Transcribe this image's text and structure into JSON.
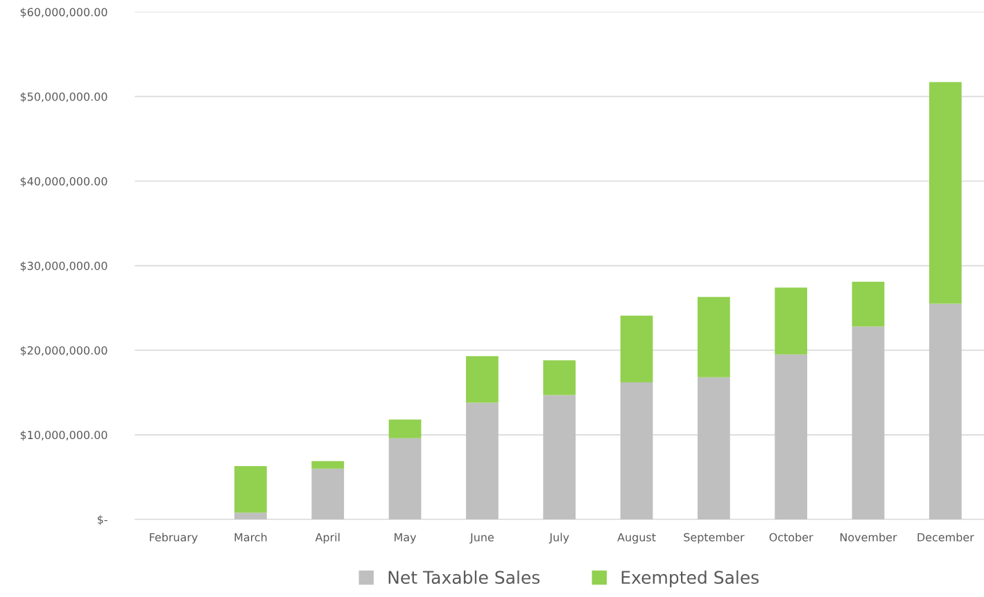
{
  "chart_data": {
    "type": "bar",
    "stacked": true,
    "categories": [
      "February",
      "March",
      "April",
      "May",
      "June",
      "July",
      "August",
      "September",
      "October",
      "November",
      "December"
    ],
    "series": [
      {
        "name": "Net Taxable Sales",
        "color": "#bfbfbf",
        "values": [
          null,
          800000,
          6000000,
          9600000,
          13800000,
          14700000,
          16200000,
          16800000,
          19500000,
          22800000,
          25500000
        ]
      },
      {
        "name": "Exempted Sales",
        "color": "#92d050",
        "values": [
          null,
          5500000,
          900000,
          2200000,
          5500000,
          4100000,
          7900000,
          9500000,
          7900000,
          5300000,
          26200000
        ]
      }
    ],
    "ylim": [
      0,
      60000000
    ],
    "yticks": [
      {
        "value": 0,
        "label": "$-"
      },
      {
        "value": 10000000,
        "label": "$10,000,000.00"
      },
      {
        "value": 20000000,
        "label": "$20,000,000.00"
      },
      {
        "value": 30000000,
        "label": "$30,000,000.00"
      },
      {
        "value": 40000000,
        "label": "$40,000,000.00"
      },
      {
        "value": 50000000,
        "label": "$50,000,000.00"
      },
      {
        "value": 60000000,
        "label": "$60,000,000.00"
      }
    ],
    "grid": "y",
    "legend": "bottom"
  }
}
